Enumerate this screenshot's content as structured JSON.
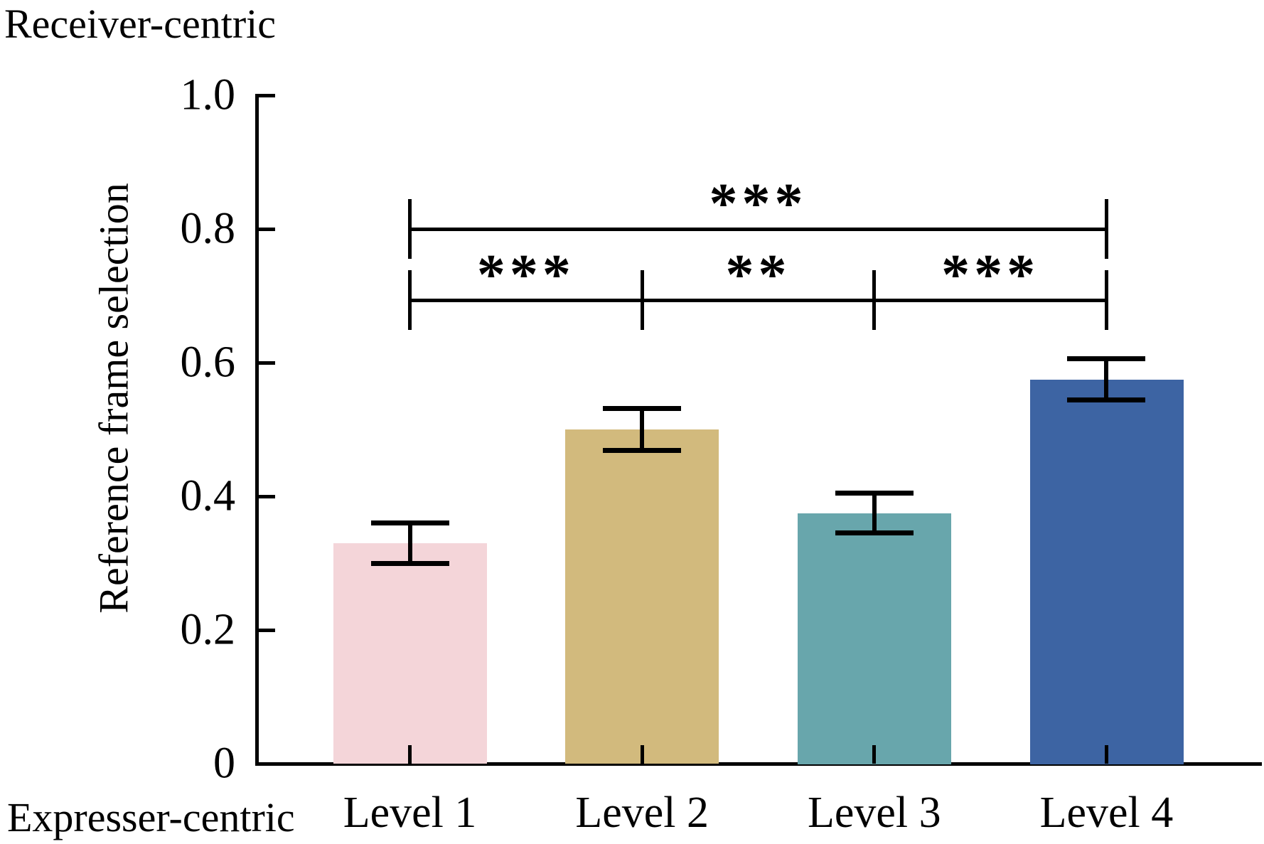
{
  "figure": {
    "receiver_label": "Receiver-centric",
    "expresser_label": "Expresser-centric"
  },
  "chart_data": {
    "type": "bar",
    "title": "",
    "xlabel": "",
    "ylabel": "Reference frame selection",
    "categories": [
      "Level 1",
      "Level 2",
      "Level 3",
      "Level 4"
    ],
    "values": [
      0.33,
      0.5,
      0.375,
      0.575
    ],
    "errors": [
      0.03,
      0.031,
      0.03,
      0.031
    ],
    "bar_colors": [
      "#F4D5D9",
      "#D2BA7D",
      "#68A6AC",
      "#3D64A3"
    ],
    "axis_color": "#000000",
    "ylim": [
      0,
      1.0
    ],
    "yticks": [
      0,
      0.2,
      0.4,
      0.6,
      0.8,
      1.0
    ],
    "ytick_labels": [
      "0",
      "0.2",
      "0.4",
      "0.6",
      "0.8",
      "1.0"
    ],
    "grid": false,
    "legend": "none",
    "y_axis_top_annotation": "Receiver-centric",
    "x_axis_origin_annotation": "Expresser-centric",
    "significance": [
      {
        "between": [
          "Level 1",
          "Level 4"
        ],
        "label": "***",
        "row": "upper"
      },
      {
        "between": [
          "Level 1",
          "Level 2"
        ],
        "label": "***",
        "row": "lower"
      },
      {
        "between": [
          "Level 2",
          "Level 3"
        ],
        "label": "**",
        "row": "lower"
      },
      {
        "between": [
          "Level 3",
          "Level 4"
        ],
        "label": "***",
        "row": "lower"
      }
    ]
  }
}
